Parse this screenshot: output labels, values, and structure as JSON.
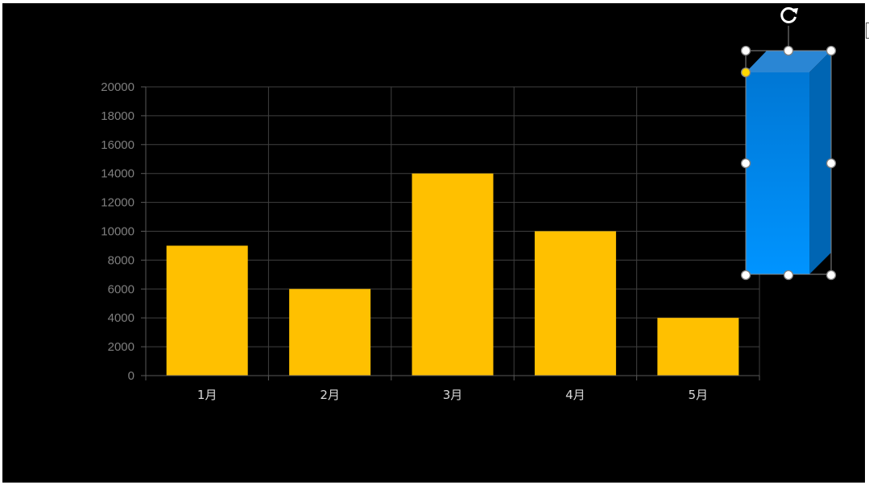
{
  "colors": {
    "background": "#000000",
    "bar": "#FFC000",
    "gridline": "#404040",
    "axis_text": "#7f7f7f",
    "category_text": "#d9d9d9",
    "shape_front": "#0b8be0",
    "shape_top": "#2a86d4",
    "shape_side": "#0065b3",
    "selection_handle": "#ffffff",
    "adjust_handle": "#ffd700"
  },
  "icons": {
    "rotate": "rotate-icon"
  },
  "chart_data": {
    "type": "bar",
    "categories": [
      "1月",
      "2月",
      "3月",
      "4月",
      "5月"
    ],
    "values": [
      9000,
      6000,
      14000,
      10000,
      4000
    ],
    "ylim": [
      0,
      20000
    ],
    "ytick_step": 2000,
    "yticks": [
      "0",
      "2000",
      "4000",
      "6000",
      "8000",
      "10000",
      "12000",
      "14000",
      "16000",
      "18000",
      "20000"
    ],
    "grid": true,
    "legend": "none"
  }
}
